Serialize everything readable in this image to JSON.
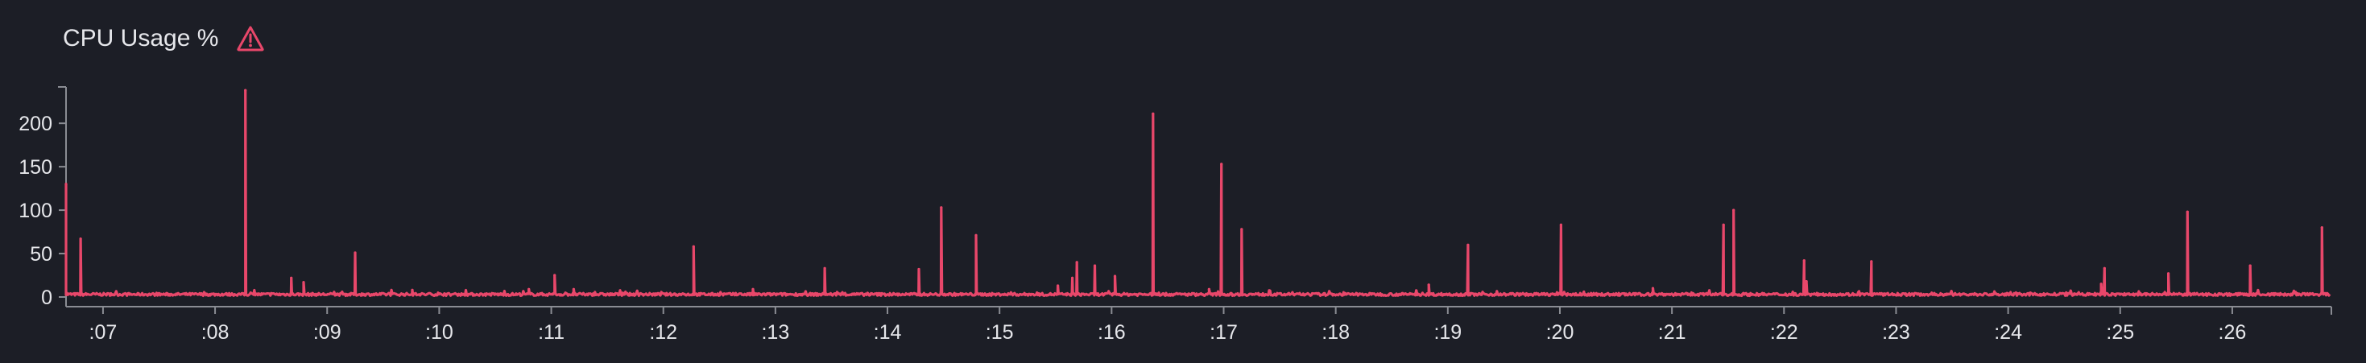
{
  "panel": {
    "title": "CPU Usage %",
    "alert_icon": "warning-triangle-icon",
    "alert_color": "#e8476a"
  },
  "colors": {
    "background": "#1c1e26",
    "series": "#e8476a",
    "axis": "#8a8c93",
    "text": "#e6e7eb"
  },
  "chart_data": {
    "type": "line",
    "title": "CPU Usage %",
    "xlabel": "",
    "ylabel": "",
    "ylim": [
      0,
      240
    ],
    "xlim": [
      6.67,
      26.87
    ],
    "y_ticks": [
      0,
      50,
      100,
      150,
      200
    ],
    "y_tick_labels": [
      "0",
      "50",
      "100",
      "150",
      "200"
    ],
    "x_ticks": [
      7,
      8,
      9,
      10,
      11,
      12,
      13,
      14,
      15,
      16,
      17,
      18,
      19,
      20,
      21,
      22,
      23,
      24,
      25,
      26
    ],
    "x_tick_labels": [
      ":07",
      ":08",
      ":09",
      ":10",
      ":11",
      ":12",
      ":13",
      ":14",
      ":15",
      ":16",
      ":17",
      ":18",
      ":19",
      ":20",
      ":21",
      ":22",
      ":23",
      ":24",
      ":25",
      ":26"
    ],
    "grid": false,
    "legend": "none",
    "baseline": 3,
    "series": [
      {
        "spikes": [
          [
            6.67,
            130
          ],
          [
            6.8,
            67
          ],
          [
            8.27,
            238
          ],
          [
            8.68,
            22
          ],
          [
            8.79,
            17
          ],
          [
            9.25,
            51
          ],
          [
            9.76,
            8
          ],
          [
            10.8,
            9
          ],
          [
            11.03,
            25
          ],
          [
            11.2,
            9
          ],
          [
            12.27,
            58
          ],
          [
            12.8,
            9
          ],
          [
            13.44,
            33
          ],
          [
            14.28,
            32
          ],
          [
            14.48,
            103
          ],
          [
            14.79,
            71
          ],
          [
            15.52,
            13
          ],
          [
            15.65,
            22
          ],
          [
            15.69,
            40
          ],
          [
            15.85,
            36
          ],
          [
            16.03,
            24
          ],
          [
            16.37,
            211
          ],
          [
            16.87,
            9
          ],
          [
            16.98,
            153
          ],
          [
            17.16,
            78
          ],
          [
            18.72,
            7
          ],
          [
            18.83,
            14
          ],
          [
            19.18,
            60
          ],
          [
            20.01,
            83
          ],
          [
            20.83,
            10
          ],
          [
            21.46,
            83
          ],
          [
            21.55,
            100
          ],
          [
            22.18,
            42
          ],
          [
            22.2,
            18
          ],
          [
            22.78,
            41
          ],
          [
            24.83,
            15
          ],
          [
            24.86,
            33
          ],
          [
            25.43,
            27
          ],
          [
            25.6,
            98
          ],
          [
            26.16,
            36
          ],
          [
            26.8,
            80
          ]
        ]
      }
    ]
  }
}
